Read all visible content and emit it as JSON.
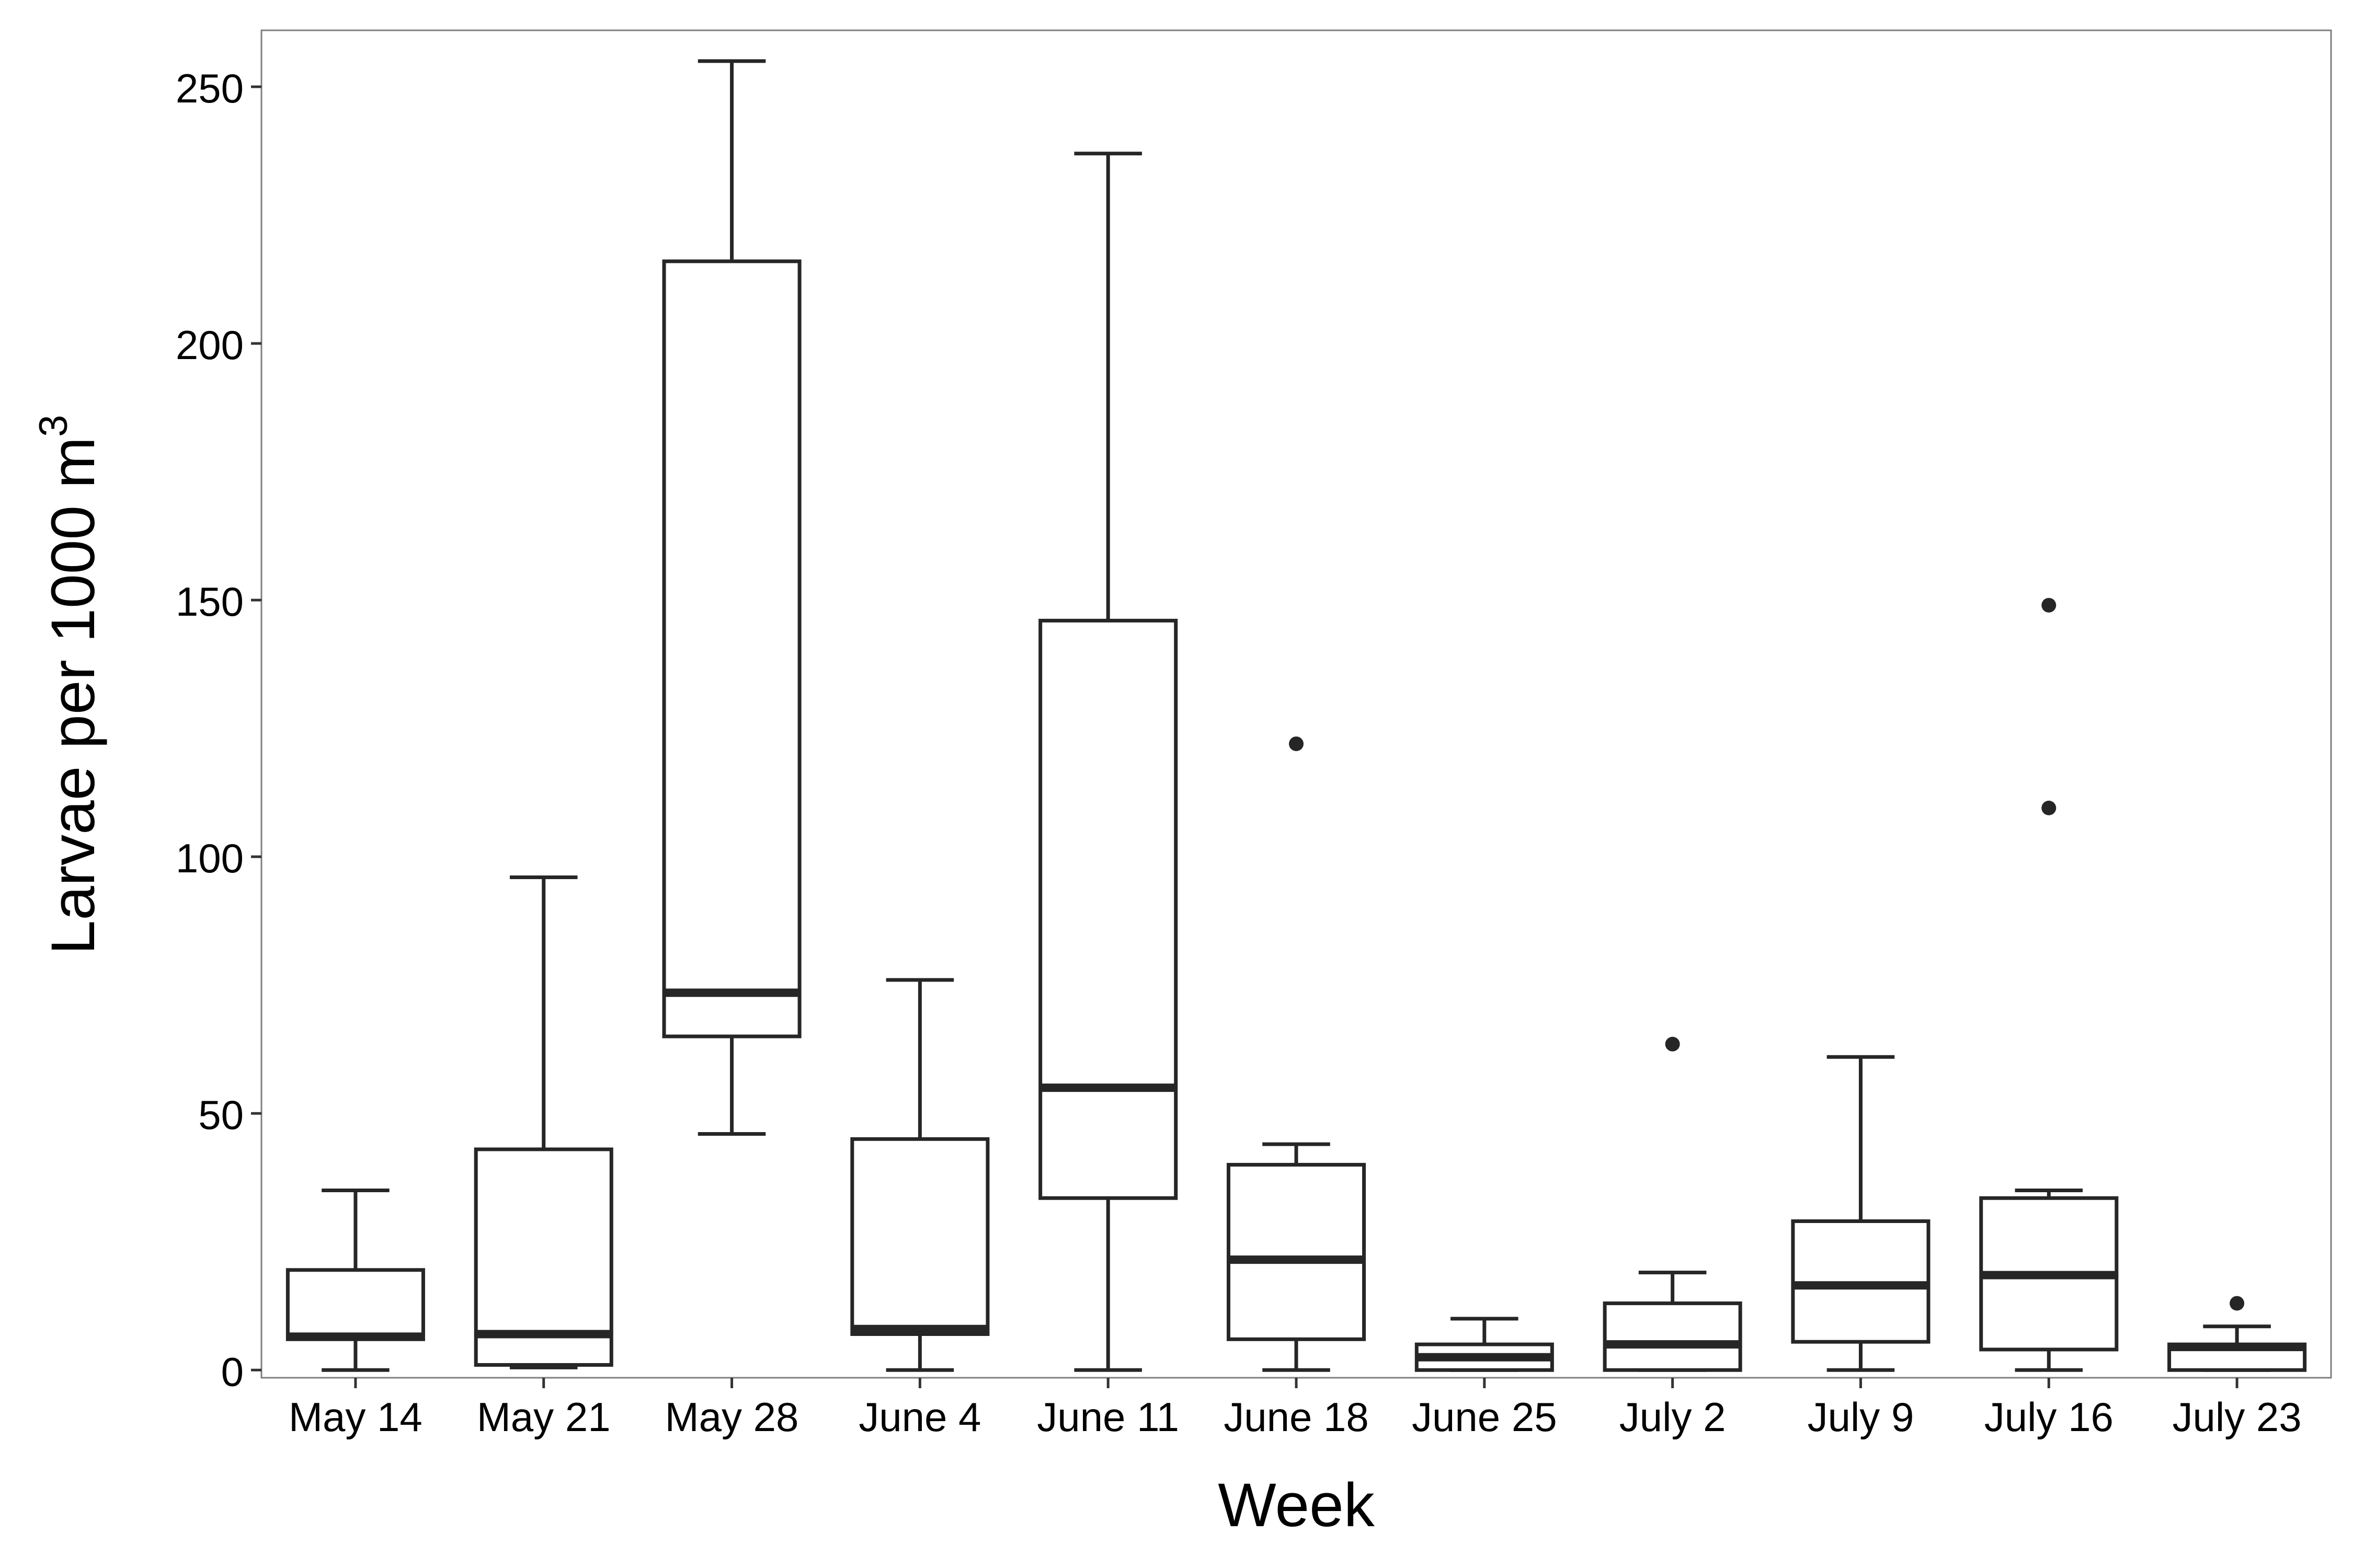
{
  "chart_data": {
    "type": "box",
    "xlabel": "Week",
    "ylabel": "Larvae per 1000 m",
    "ylabel_superscript": "3",
    "ylim": [
      -1.5,
      261
    ],
    "yticks": [
      0,
      50,
      100,
      150,
      200,
      250
    ],
    "grid": false,
    "categories": [
      "May 14",
      "May 21",
      "May 28",
      "June 4",
      "June 11",
      "June 18",
      "June 25",
      "July 2",
      "July 9",
      "July 16",
      "July 23"
    ],
    "boxes": [
      {
        "min": 0,
        "q1": 6,
        "median": 6.5,
        "q3": 19.5,
        "max": 35,
        "outliers": []
      },
      {
        "min": 0.5,
        "q1": 1,
        "median": 7,
        "q3": 43,
        "max": 96,
        "outliers": []
      },
      {
        "min": 46,
        "q1": 65,
        "median": 73.5,
        "q3": 216,
        "max": 255,
        "outliers": []
      },
      {
        "min": 0,
        "q1": 7,
        "median": 8,
        "q3": 45,
        "max": 76,
        "outliers": []
      },
      {
        "min": 0,
        "q1": 33.5,
        "median": 55,
        "q3": 146,
        "max": 237,
        "outliers": []
      },
      {
        "min": 0,
        "q1": 6,
        "median": 21.5,
        "q3": 40,
        "max": 44,
        "outliers": [
          122
        ]
      },
      {
        "min": 0,
        "q1": 0,
        "median": 2.5,
        "q3": 5,
        "max": 10,
        "outliers": []
      },
      {
        "min": 0,
        "q1": 0,
        "median": 5,
        "q3": 13,
        "max": 19,
        "outliers": [
          63.5
        ]
      },
      {
        "min": 0,
        "q1": 5.5,
        "median": 16.5,
        "q3": 29,
        "max": 61,
        "outliers": []
      },
      {
        "min": 0,
        "q1": 4,
        "median": 18.5,
        "q3": 33.5,
        "max": 35,
        "outliers": [
          109.5,
          149
        ]
      },
      {
        "min": 0,
        "q1": 0,
        "median": 4.5,
        "q3": 5,
        "max": 8.5,
        "outliers": [
          13
        ]
      }
    ]
  }
}
